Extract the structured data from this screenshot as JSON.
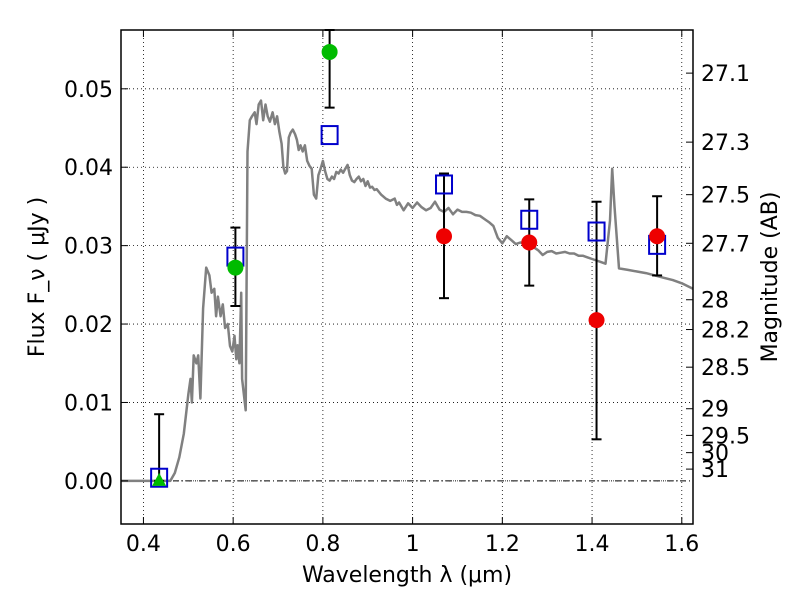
{
  "chart_data": {
    "type": "scatter",
    "xlabel": "Wavelength  λ (μm)",
    "ylabel": "Flux  F_ν  ( μJy )",
    "y2label": "Magnitude (AB)",
    "xlim": [
      0.35,
      1.625
    ],
    "ylim": [
      -0.0055,
      0.0575
    ],
    "grid": true,
    "x_ticks": [
      {
        "v": 0.4,
        "label": "0.4"
      },
      {
        "v": 0.6,
        "label": "0.6"
      },
      {
        "v": 0.8,
        "label": "0.8"
      },
      {
        "v": 1.0,
        "label": "1"
      },
      {
        "v": 1.2,
        "label": "1.2"
      },
      {
        "v": 1.4,
        "label": "1.4"
      },
      {
        "v": 1.6,
        "label": "1.6"
      }
    ],
    "y_ticks": [
      {
        "v": 0.0,
        "label": "0.00"
      },
      {
        "v": 0.01,
        "label": "0.01"
      },
      {
        "v": 0.02,
        "label": "0.02"
      },
      {
        "v": 0.03,
        "label": "0.03"
      },
      {
        "v": 0.04,
        "label": "0.04"
      },
      {
        "v": 0.05,
        "label": "0.05"
      }
    ],
    "mag_ticks": [
      {
        "label": "27.1",
        "flux": 0.052
      },
      {
        "label": "27.3",
        "flux": 0.0432
      },
      {
        "label": "27.5",
        "flux": 0.0365
      },
      {
        "label": "27.7",
        "flux": 0.0303
      },
      {
        "label": "28",
        "flux": 0.0231
      },
      {
        "label": "28.2",
        "flux": 0.0193
      },
      {
        "label": "28.5",
        "flux": 0.0145
      },
      {
        "label": "29",
        "flux": 0.0092
      },
      {
        "label": "29.5",
        "flux": 0.0058
      },
      {
        "label": "30",
        "flux": 0.0036
      },
      {
        "label": "31",
        "flux": 0.0015
      }
    ],
    "template_sed": {
      "color": "#808080",
      "points": [
        [
          0.35,
          0.0
        ],
        [
          0.46,
          0.0
        ],
        [
          0.47,
          0.001
        ],
        [
          0.48,
          0.003
        ],
        [
          0.49,
          0.006
        ],
        [
          0.5,
          0.011
        ],
        [
          0.505,
          0.013
        ],
        [
          0.508,
          0.01
        ],
        [
          0.512,
          0.016
        ],
        [
          0.518,
          0.015
        ],
        [
          0.522,
          0.016
        ],
        [
          0.527,
          0.0105
        ],
        [
          0.533,
          0.022
        ],
        [
          0.54,
          0.0272
        ],
        [
          0.547,
          0.0262
        ],
        [
          0.552,
          0.024
        ],
        [
          0.558,
          0.0245
        ],
        [
          0.562,
          0.021
        ],
        [
          0.566,
          0.0235
        ],
        [
          0.572,
          0.021
        ],
        [
          0.577,
          0.0225
        ],
        [
          0.582,
          0.0195
        ],
        [
          0.588,
          0.02
        ],
        [
          0.593,
          0.0172
        ],
        [
          0.598,
          0.0165
        ],
        [
          0.603,
          0.0185
        ],
        [
          0.607,
          0.0155
        ],
        [
          0.61,
          0.0173
        ],
        [
          0.614,
          0.015
        ],
        [
          0.618,
          0.024
        ],
        [
          0.62,
          0.013
        ],
        [
          0.624,
          0.011
        ],
        [
          0.628,
          0.009
        ],
        [
          0.632,
          0.042
        ],
        [
          0.637,
          0.046
        ],
        [
          0.642,
          0.0465
        ],
        [
          0.648,
          0.047
        ],
        [
          0.652,
          0.0455
        ],
        [
          0.657,
          0.048
        ],
        [
          0.662,
          0.0485
        ],
        [
          0.667,
          0.046
        ],
        [
          0.672,
          0.048
        ],
        [
          0.677,
          0.0465
        ],
        [
          0.682,
          0.0458
        ],
        [
          0.688,
          0.047
        ],
        [
          0.693,
          0.0455
        ],
        [
          0.698,
          0.0465
        ],
        [
          0.703,
          0.0445
        ],
        [
          0.708,
          0.043
        ],
        [
          0.712,
          0.04
        ],
        [
          0.716,
          0.0392
        ],
        [
          0.72,
          0.0395
        ],
        [
          0.724,
          0.0438
        ],
        [
          0.728,
          0.0444
        ],
        [
          0.733,
          0.0448
        ],
        [
          0.738,
          0.0442
        ],
        [
          0.742,
          0.0435
        ],
        [
          0.746,
          0.0422
        ],
        [
          0.75,
          0.0428
        ],
        [
          0.755,
          0.042
        ],
        [
          0.76,
          0.0428
        ],
        [
          0.765,
          0.0408
        ],
        [
          0.77,
          0.0402
        ],
        [
          0.775,
          0.0398
        ],
        [
          0.78,
          0.0365
        ],
        [
          0.785,
          0.036
        ],
        [
          0.79,
          0.039
        ],
        [
          0.795,
          0.0398
        ],
        [
          0.8,
          0.0408
        ],
        [
          0.805,
          0.0395
        ],
        [
          0.81,
          0.0385
        ],
        [
          0.815,
          0.0383
        ],
        [
          0.82,
          0.0388
        ],
        [
          0.825,
          0.0385
        ],
        [
          0.83,
          0.0394
        ],
        [
          0.835,
          0.0392
        ],
        [
          0.84,
          0.0397
        ],
        [
          0.845,
          0.0393
        ],
        [
          0.85,
          0.0398
        ],
        [
          0.855,
          0.0403
        ],
        [
          0.86,
          0.039
        ],
        [
          0.865,
          0.0383
        ],
        [
          0.87,
          0.0381
        ],
        [
          0.875,
          0.0385
        ],
        [
          0.88,
          0.0388
        ],
        [
          0.885,
          0.0382
        ],
        [
          0.89,
          0.0385
        ],
        [
          0.895,
          0.0376
        ],
        [
          0.9,
          0.0382
        ],
        [
          0.905,
          0.0374
        ],
        [
          0.91,
          0.0375
        ],
        [
          0.915,
          0.0371
        ],
        [
          0.92,
          0.0372
        ],
        [
          0.93,
          0.0365
        ],
        [
          0.94,
          0.036
        ],
        [
          0.95,
          0.0357
        ],
        [
          0.96,
          0.036
        ],
        [
          0.965,
          0.0352
        ],
        [
          0.97,
          0.0355
        ],
        [
          0.98,
          0.0345
        ],
        [
          0.99,
          0.0354
        ],
        [
          1.0,
          0.0348
        ],
        [
          1.01,
          0.0355
        ],
        [
          1.02,
          0.0349
        ],
        [
          1.03,
          0.0345
        ],
        [
          1.04,
          0.0348
        ],
        [
          1.05,
          0.0356
        ],
        [
          1.06,
          0.0346
        ],
        [
          1.07,
          0.0343
        ],
        [
          1.08,
          0.0348
        ],
        [
          1.09,
          0.034
        ],
        [
          1.1,
          0.0346
        ],
        [
          1.11,
          0.0343
        ],
        [
          1.12,
          0.0343
        ],
        [
          1.13,
          0.0342
        ],
        [
          1.14,
          0.0339
        ],
        [
          1.15,
          0.0338
        ],
        [
          1.16,
          0.0334
        ],
        [
          1.17,
          0.033
        ],
        [
          1.18,
          0.0325
        ],
        [
          1.19,
          0.031
        ],
        [
          1.2,
          0.0303
        ],
        [
          1.21,
          0.0312
        ],
        [
          1.22,
          0.0307
        ],
        [
          1.23,
          0.0302
        ],
        [
          1.24,
          0.0304
        ],
        [
          1.25,
          0.0303
        ],
        [
          1.26,
          0.0297
        ],
        [
          1.27,
          0.0298
        ],
        [
          1.28,
          0.0294
        ],
        [
          1.29,
          0.0288
        ],
        [
          1.3,
          0.0292
        ],
        [
          1.31,
          0.0293
        ],
        [
          1.32,
          0.029
        ],
        [
          1.33,
          0.0291
        ],
        [
          1.34,
          0.0292
        ],
        [
          1.35,
          0.029
        ],
        [
          1.36,
          0.029
        ],
        [
          1.37,
          0.0287
        ],
        [
          1.38,
          0.0287
        ],
        [
          1.39,
          0.0285
        ],
        [
          1.4,
          0.0283
        ],
        [
          1.41,
          0.0281
        ],
        [
          1.42,
          0.0279
        ],
        [
          1.43,
          0.0277
        ],
        [
          1.44,
          0.0332
        ],
        [
          1.445,
          0.0398
        ],
        [
          1.45,
          0.035
        ],
        [
          1.46,
          0.0271
        ],
        [
          1.48,
          0.0269
        ],
        [
          1.5,
          0.0267
        ],
        [
          1.52,
          0.0265
        ],
        [
          1.54,
          0.0262
        ],
        [
          1.56,
          0.0259
        ],
        [
          1.58,
          0.0256
        ],
        [
          1.6,
          0.0252
        ],
        [
          1.625,
          0.0245
        ]
      ]
    },
    "model_photometry": {
      "marker": "open-square",
      "color": "#0000cc",
      "points": [
        [
          0.435,
          0.0004
        ],
        [
          0.605,
          0.0286
        ],
        [
          0.815,
          0.0441
        ],
        [
          1.07,
          0.0378
        ],
        [
          1.26,
          0.0333
        ],
        [
          1.41,
          0.0318
        ],
        [
          1.545,
          0.0301
        ]
      ]
    },
    "observed_green": {
      "marker": "filled-circle",
      "color": "#00bb00",
      "points": [
        {
          "x": 0.605,
          "y": 0.0272,
          "err": [
            0.0223,
            0.0323
          ]
        },
        {
          "x": 0.815,
          "y": 0.0547,
          "err": [
            0.0476,
            0.0575
          ]
        }
      ]
    },
    "observed_green_limit": {
      "marker": "filled-triangle",
      "color": "#00bb00",
      "points": [
        {
          "x": 0.435,
          "y": 0.0,
          "err": [
            0.0,
            0.0085
          ]
        }
      ]
    },
    "observed_red": {
      "marker": "filled-circle",
      "color": "#ee0000",
      "points": [
        {
          "x": 1.07,
          "y": 0.0312,
          "err": [
            0.0233,
            0.0392
          ]
        },
        {
          "x": 1.26,
          "y": 0.0304,
          "err": [
            0.0249,
            0.0359
          ]
        },
        {
          "x": 1.41,
          "y": 0.0205,
          "err": [
            0.0053,
            0.0356
          ]
        },
        {
          "x": 1.545,
          "y": 0.0312,
          "err": [
            0.0262,
            0.0363
          ]
        }
      ]
    }
  }
}
